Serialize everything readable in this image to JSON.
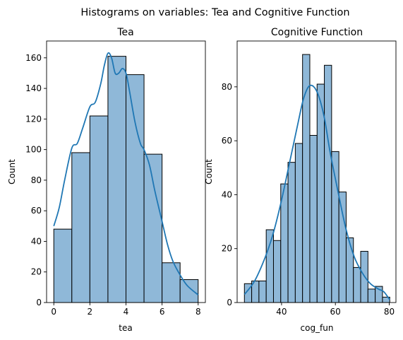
{
  "figure": {
    "suptitle": "Histograms on variables: Tea and Cognitive Function"
  },
  "colors": {
    "bar_fill": "#8fb8d8",
    "bar_edge": "#000000",
    "kde_line": "#1f77b4"
  },
  "chart_data": [
    {
      "type": "histogram",
      "title": "Tea",
      "xlabel": "tea",
      "ylabel": "Count",
      "xlim": [
        -0.4,
        8.4
      ],
      "ylim": [
        0,
        171
      ],
      "xticks": [
        0,
        2,
        4,
        6,
        8
      ],
      "yticks": [
        0,
        20,
        40,
        60,
        80,
        100,
        120,
        140,
        160
      ],
      "bins": [
        {
          "x0": 0,
          "x1": 1,
          "count": 48
        },
        {
          "x0": 1,
          "x1": 2,
          "count": 98
        },
        {
          "x0": 2,
          "x1": 3,
          "count": 122
        },
        {
          "x0": 3,
          "x1": 4,
          "count": 161
        },
        {
          "x0": 4,
          "x1": 5,
          "count": 149
        },
        {
          "x0": 5,
          "x1": 6,
          "count": 97
        },
        {
          "x0": 6,
          "x1": 7,
          "count": 26
        },
        {
          "x0": 7,
          "x1": 8,
          "count": 15
        }
      ],
      "kde": [
        [
          0,
          50
        ],
        [
          0.3,
          62
        ],
        [
          0.6,
          80
        ],
        [
          1,
          101
        ],
        [
          1.3,
          104
        ],
        [
          1.6,
          114
        ],
        [
          2,
          128
        ],
        [
          2.3,
          131
        ],
        [
          2.6,
          143
        ],
        [
          2.8,
          155
        ],
        [
          3,
          163
        ],
        [
          3.2,
          160
        ],
        [
          3.4,
          150
        ],
        [
          3.6,
          150
        ],
        [
          3.8,
          153
        ],
        [
          4,
          150
        ],
        [
          4.2,
          138
        ],
        [
          4.5,
          118
        ],
        [
          4.8,
          104
        ],
        [
          5,
          100
        ],
        [
          5.3,
          90
        ],
        [
          5.6,
          73
        ],
        [
          6,
          53
        ],
        [
          6.3,
          38
        ],
        [
          6.6,
          27
        ],
        [
          7,
          18
        ],
        [
          7.4,
          11
        ],
        [
          8,
          5
        ]
      ]
    },
    {
      "type": "histogram",
      "title": "Cognitive Function",
      "xlabel": "cog_fun",
      "ylabel": "Count",
      "xlim": [
        23.5,
        82.5
      ],
      "ylim": [
        0,
        97
      ],
      "xticks": [
        40,
        60,
        80
      ],
      "yticks": [
        0,
        20,
        40,
        60,
        80
      ],
      "bins": [
        {
          "x0": 26.2,
          "x1": 28.9,
          "count": 7
        },
        {
          "x0": 28.9,
          "x1": 31.6,
          "count": 8
        },
        {
          "x0": 31.6,
          "x1": 34.3,
          "count": 8
        },
        {
          "x0": 34.3,
          "x1": 37.0,
          "count": 27
        },
        {
          "x0": 37.0,
          "x1": 39.7,
          "count": 23
        },
        {
          "x0": 39.7,
          "x1": 42.4,
          "count": 44
        },
        {
          "x0": 42.4,
          "x1": 45.1,
          "count": 52
        },
        {
          "x0": 45.1,
          "x1": 47.8,
          "count": 59
        },
        {
          "x0": 47.8,
          "x1": 50.5,
          "count": 92
        },
        {
          "x0": 50.5,
          "x1": 53.2,
          "count": 62
        },
        {
          "x0": 53.2,
          "x1": 55.9,
          "count": 81
        },
        {
          "x0": 55.9,
          "x1": 58.6,
          "count": 88
        },
        {
          "x0": 58.6,
          "x1": 61.3,
          "count": 56
        },
        {
          "x0": 61.3,
          "x1": 64.0,
          "count": 41
        },
        {
          "x0": 64.0,
          "x1": 66.7,
          "count": 24
        },
        {
          "x0": 66.7,
          "x1": 69.4,
          "count": 13
        },
        {
          "x0": 69.4,
          "x1": 72.1,
          "count": 19
        },
        {
          "x0": 72.1,
          "x1": 74.8,
          "count": 5
        },
        {
          "x0": 74.8,
          "x1": 77.5,
          "count": 6
        },
        {
          "x0": 77.5,
          "x1": 80.2,
          "count": 2
        }
      ],
      "kde": [
        [
          26.2,
          3
        ],
        [
          30,
          8
        ],
        [
          34,
          17
        ],
        [
          37,
          26
        ],
        [
          40,
          38
        ],
        [
          43,
          52
        ],
        [
          46,
          66
        ],
        [
          48,
          75
        ],
        [
          50,
          80
        ],
        [
          52,
          80
        ],
        [
          54,
          76
        ],
        [
          56,
          68
        ],
        [
          58,
          56
        ],
        [
          61,
          41
        ],
        [
          64,
          27
        ],
        [
          67,
          17
        ],
        [
          70,
          11
        ],
        [
          73,
          7
        ],
        [
          76,
          5
        ],
        [
          78,
          4
        ],
        [
          80.2,
          1
        ]
      ]
    }
  ]
}
